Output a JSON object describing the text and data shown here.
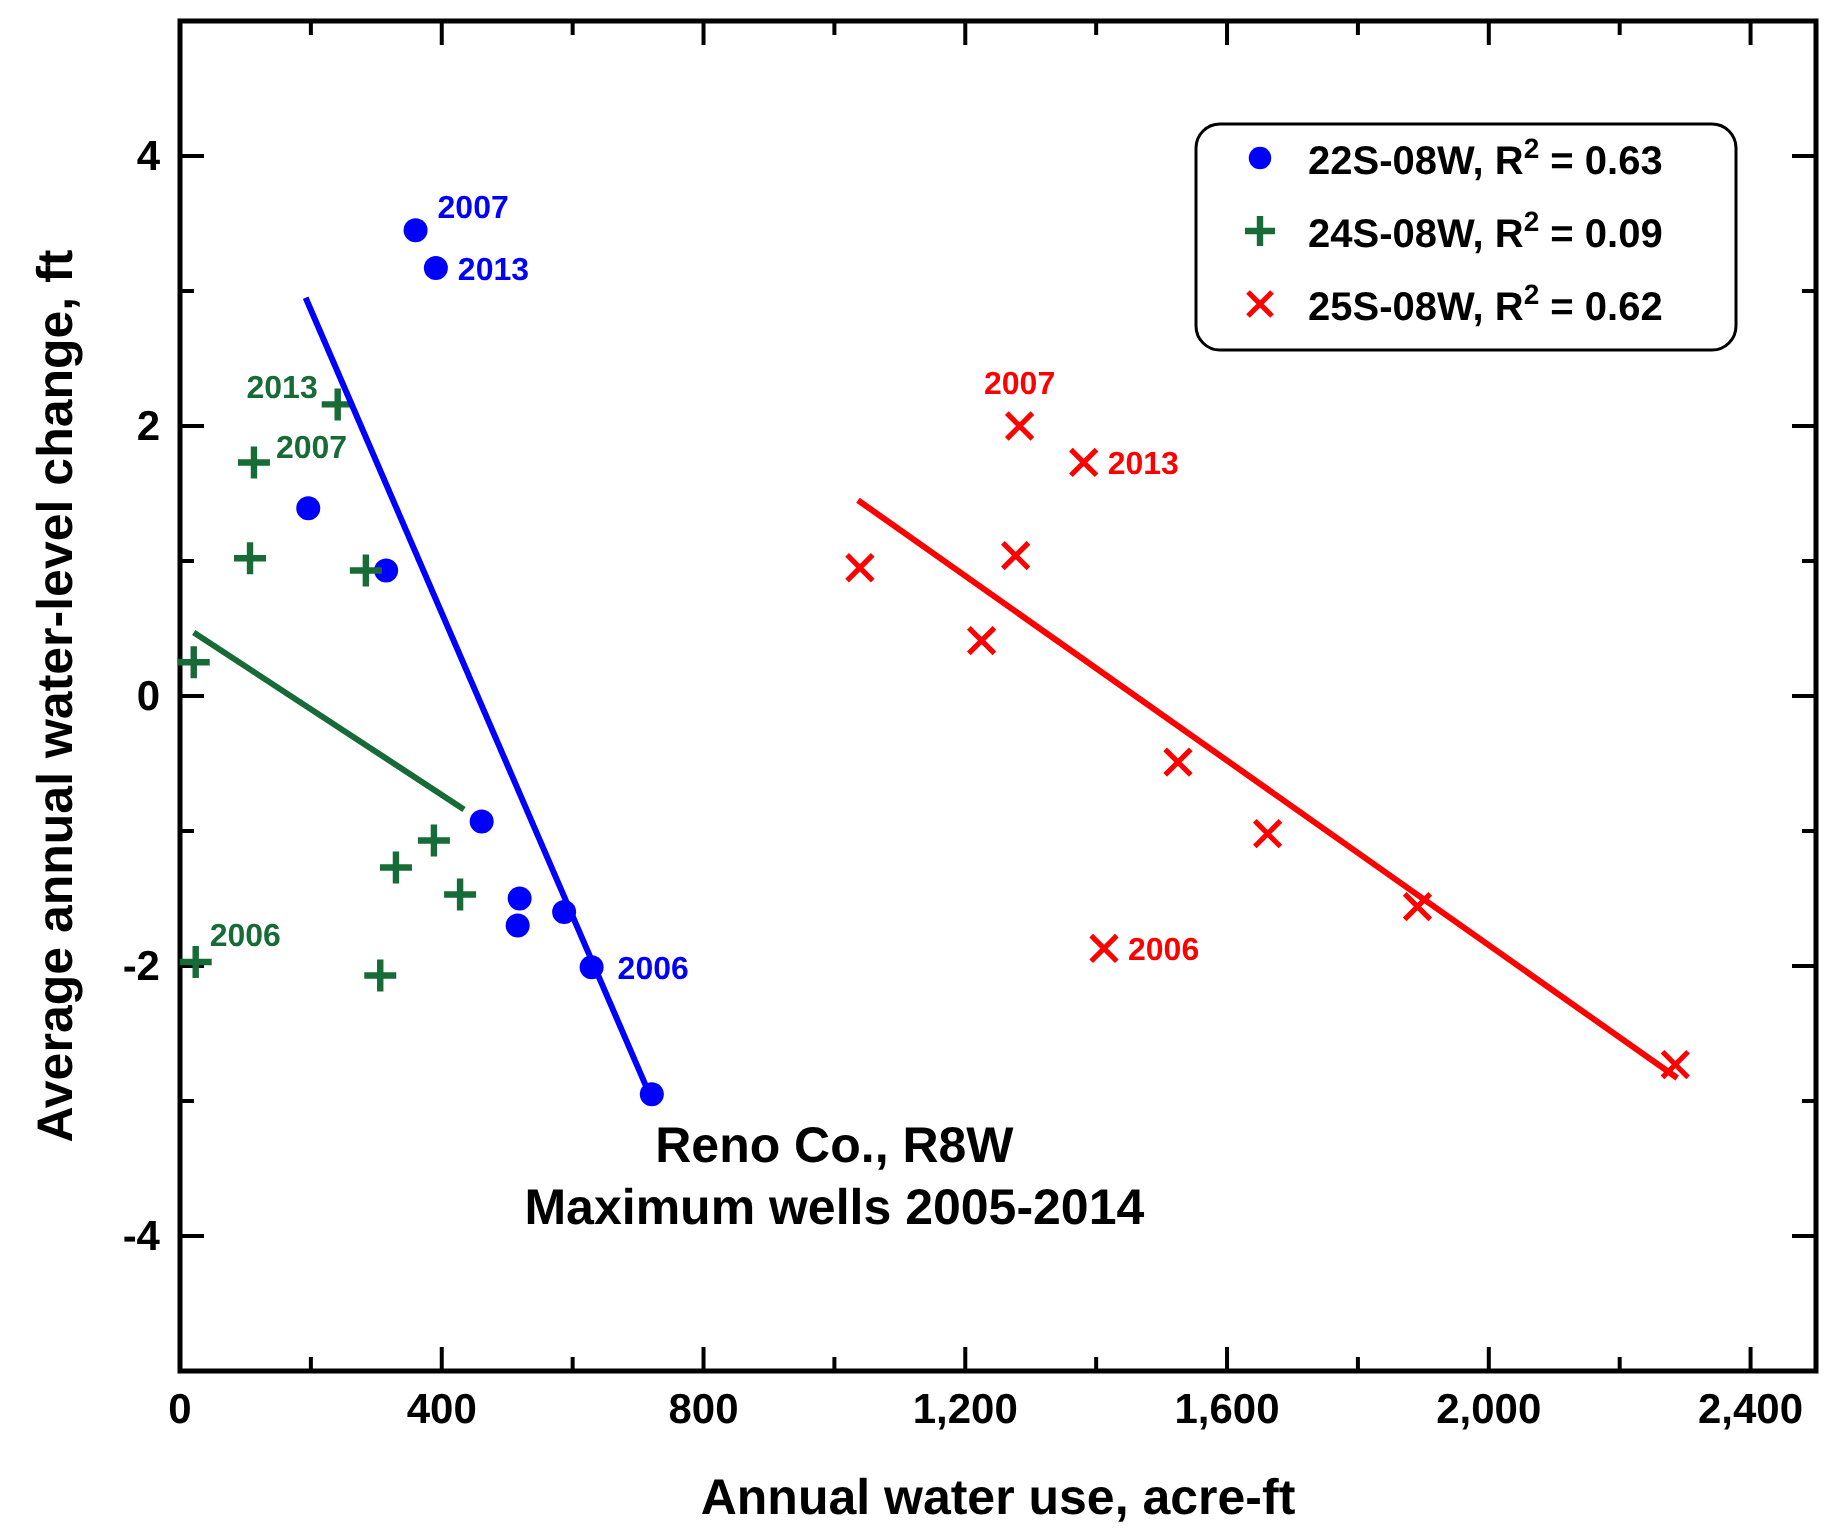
{
  "chart_data": {
    "type": "scatter",
    "xlabel": "Annual water use, acre-ft",
    "ylabel": "Average annual water-level change, ft",
    "xlim": [
      0,
      2500
    ],
    "ylim": [
      -5,
      5
    ],
    "xticks": [
      0,
      {
        "value": 200,
        "label": null
      },
      {
        "value": 400,
        "label": "400"
      },
      {
        "value": 600,
        "label": null
      },
      {
        "value": 800,
        "label": "800"
      },
      {
        "value": 1000,
        "label": null
      },
      {
        "value": 1200,
        "label": "1,200"
      },
      {
        "value": 1400,
        "label": null
      },
      {
        "value": 1600,
        "label": "1,600"
      },
      {
        "value": 1800,
        "label": null
      },
      {
        "value": 2000,
        "label": "2,000"
      },
      {
        "value": 2200,
        "label": null
      },
      {
        "value": 2400,
        "label": "2,400"
      }
    ],
    "yticks": [
      {
        "value": -5,
        "label": null
      },
      -4,
      {
        "value": -3,
        "label": null
      },
      -2,
      {
        "value": -1,
        "label": null
      },
      0,
      {
        "value": 1,
        "label": null
      },
      2,
      {
        "value": 3,
        "label": null
      },
      4,
      {
        "value": 5,
        "label": null
      }
    ],
    "grid": false,
    "legend": "top right",
    "series": [
      {
        "name": "22S-08W, R$^{2}$ = 0.63",
        "color": "#0000ff",
        "marker": "circle",
        "x": [
          360,
          391,
          196,
          315,
          461,
          519,
          516,
          587,
          629,
          721
        ],
        "values": [
          3.45,
          3.17,
          1.39,
          0.93,
          -0.93,
          -1.5,
          -1.7,
          -1.6,
          -2.01,
          -2.95
        ]
      },
      {
        "name": "24S-08W, R$^{2}$ = 0.09",
        "color": "#176b36",
        "marker": "cross",
        "x": [
          21,
          107,
          113,
          241,
          284,
          24,
          306,
          330,
          388,
          428
        ],
        "values": [
          0.25,
          1.02,
          1.73,
          2.16,
          0.93,
          -1.97,
          -2.07,
          -1.27,
          -1.07,
          -1.47
        ]
      },
      {
        "name": "25S-08W, R$^{2}$ = 0.62",
        "color": "#ff0000",
        "marker": "x",
        "x": [
          1039,
          1225,
          1277,
          1283,
          1381,
          1525,
          1662,
          1891,
          1412,
          2285
        ],
        "values": [
          0.95,
          0.41,
          1.04,
          2.0,
          1.73,
          -0.49,
          -1.02,
          -1.56,
          -1.87,
          -2.73
        ]
      },
      {
        "type": "line",
        "color": "#0000ff",
        "x": [
          192,
          721
        ],
        "values": [
          2.95,
          -2.99
        ]
      },
      {
        "type": "line",
        "color": "#176b36",
        "x": [
          21,
          434
        ],
        "values": [
          0.47,
          -0.84
        ]
      },
      {
        "type": "line",
        "color": "#ff0000",
        "x": [
          1036,
          2288
        ],
        "values": [
          1.45,
          -2.83
        ]
      }
    ],
    "annotations": [
      {
        "text": "2007",
        "x": 360,
        "y": 3.45
      },
      {
        "text": "2013",
        "x": 391,
        "y": 3.17
      },
      {
        "text": "2006",
        "x": 629,
        "y": -2.01
      },
      {
        "text": "2013",
        "x": 241,
        "y": 2.16
      },
      {
        "text": "2007",
        "x": 113,
        "y": 1.73
      },
      {
        "text": "2006",
        "x": 24,
        "y": -1.97
      },
      {
        "text": "2007",
        "x": 1283,
        "y": 2.0
      },
      {
        "text": "2013",
        "x": 1381,
        "y": 1.73
      },
      {
        "text": "2006",
        "x": 1412,
        "y": -1.87
      },
      "Reno Co., R8W",
      "Maximum wells 2005-2014"
    ]
  }
}
